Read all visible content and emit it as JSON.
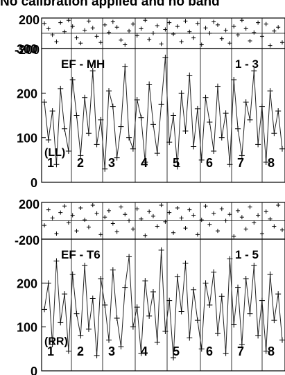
{
  "chart_data": {
    "type": "line",
    "title": "No calibration applied and no band",
    "panels": [
      {
        "name": "EF - MH",
        "corner_label": "1 - 3",
        "channel": "(LL)",
        "top_ylim": [
          -200,
          200
        ],
        "top_ticks": [
          "200",
          "-200"
        ],
        "ylim": [
          0,
          300
        ],
        "ticks": [
          "300",
          "200",
          "100",
          "0"
        ],
        "segment_labels": [
          "1",
          "2",
          "3",
          "4",
          "5",
          "6",
          "7",
          "8"
        ],
        "phase": [
          130,
          60,
          -20,
          -110,
          140,
          20,
          170,
          90,
          -60,
          -130,
          40,
          160,
          70,
          -40,
          -120,
          110,
          10,
          150,
          80,
          -90,
          -150,
          30,
          120,
          -30,
          60,
          170,
          -80,
          0,
          100,
          -140,
          50,
          140,
          -10,
          90,
          -110,
          160,
          20,
          -60,
          130,
          -150,
          70,
          0,
          150,
          110,
          -70,
          40,
          -130,
          90,
          -20,
          170,
          60,
          -100,
          10,
          140,
          -40,
          120,
          -160,
          30,
          80,
          -120
        ],
        "amplitude": [
          180,
          95,
          160,
          40,
          210,
          120,
          70,
          230,
          150,
          60,
          190,
          110,
          250,
          85,
          140,
          30,
          205,
          170,
          55,
          125,
          260,
          100,
          75,
          185,
          145,
          45,
          220,
          130,
          65,
          175,
          280,
          90,
          150,
          35,
          200,
          115,
          240,
          80,
          165,
          50,
          190,
          135,
          70,
          215,
          100,
          155,
          40,
          230,
          120,
          60,
          180,
          140,
          250,
          85,
          170,
          45,
          205,
          110,
          160,
          75
        ]
      },
      {
        "name": "EF - T6",
        "corner_label": "1 - 5",
        "channel": "(RR)",
        "top_ylim": [
          -200,
          200
        ],
        "top_ticks": [
          "200",
          "-200"
        ],
        "ylim": [
          0,
          300
        ],
        "ticks": [
          "200",
          "100",
          "0"
        ],
        "segment_labels": [
          "1",
          "2",
          "3",
          "4",
          "5",
          "6",
          "7",
          "8"
        ],
        "phase": [
          -50,
          120,
          30,
          -140,
          90,
          160,
          -20,
          60,
          -110,
          140,
          10,
          -70,
          170,
          80,
          -150,
          40,
          110,
          -30,
          -120,
          150,
          70,
          0,
          -90,
          130,
          20,
          -160,
          100,
          50,
          -60,
          170,
          -10,
          90,
          -130,
          140,
          30,
          -80,
          120,
          60,
          -150,
          10,
          160,
          -40,
          80,
          -110,
          130,
          0,
          70,
          -170,
          110,
          40,
          -90,
          150,
          -20,
          60,
          -140,
          100,
          20,
          -60,
          170,
          -100
        ],
        "amplitude": [
          140,
          200,
          60,
          250,
          110,
          175,
          45,
          220,
          130,
          80,
          240,
          95,
          165,
          35,
          210,
          150,
          70,
          230,
          120,
          55,
          190,
          260,
          100,
          145,
          40,
          205,
          125,
          180,
          65,
          275,
          90,
          160,
          30,
          215,
          135,
          245,
          75,
          185,
          115,
          50,
          200,
          150,
          225,
          85,
          170,
          40,
          255,
          105,
          190,
          60,
          210,
          130,
          240,
          80,
          160,
          45,
          220,
          115,
          175,
          70
        ]
      }
    ]
  },
  "colors": {
    "ink": "#000000",
    "background": "#ffffff"
  }
}
